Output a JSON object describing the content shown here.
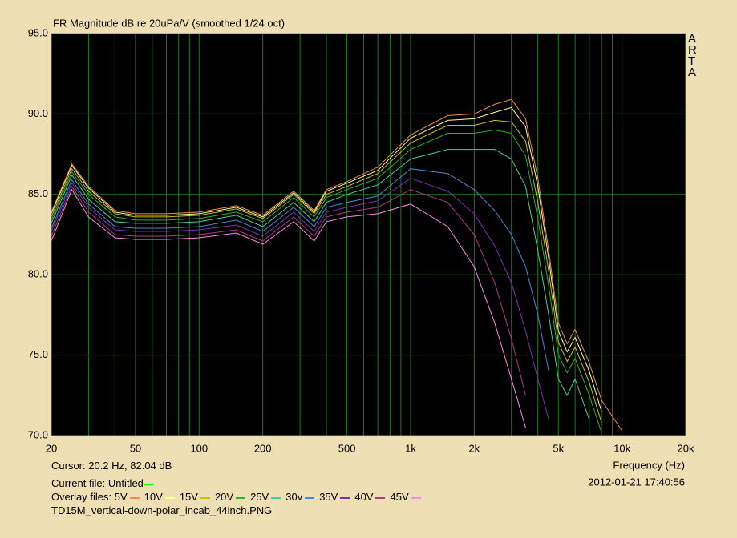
{
  "chart_data": {
    "type": "line",
    "title": "FR Magnitude dB re 20uPa/V (smoothed 1/24 oct)",
    "side_label": "ARTA",
    "x_label": "Frequency (Hz)",
    "x_log": true,
    "grid": true,
    "xlim": [
      20,
      20000
    ],
    "ylim": [
      70,
      95
    ],
    "yticks": [
      {
        "value": 70,
        "label": "70.0"
      },
      {
        "value": 75,
        "label": "75.0"
      },
      {
        "value": 80,
        "label": "80.0"
      },
      {
        "value": 85,
        "label": "85.0"
      },
      {
        "value": 90,
        "label": "90.0"
      },
      {
        "value": 95,
        "label": "95.0"
      }
    ],
    "xticks": [
      20,
      50,
      100,
      200,
      500,
      {
        "value": 1000,
        "label": "1k"
      },
      {
        "value": 2000,
        "label": "2k"
      },
      {
        "value": 5000,
        "label": "5k"
      },
      {
        "value": 10000,
        "label": "10k"
      },
      {
        "value": 20000,
        "label": "20k"
      }
    ],
    "x_minor_gridlines": [
      30,
      40,
      60,
      70,
      80,
      90,
      300,
      400,
      600,
      700,
      800,
      900,
      3000,
      4000,
      6000,
      7000,
      8000,
      9000
    ],
    "cursor_text": "Cursor: 20.2 Hz, 82.04 dB",
    "current_file_label": "Current file:",
    "current_file": "Untitled",
    "current_file_color": "#00ff00",
    "overlay_label": "Overlay files:",
    "file_name": "TD15M_vertical-down-polar_incab_44inch.PNG",
    "timestamp": "2012-01-21  17:40:56",
    "x": [
      20,
      25,
      30,
      40,
      50,
      70,
      100,
      150,
      200,
      280,
      350,
      400,
      500,
      700,
      1000,
      1500,
      2000,
      2500,
      3000,
      3500,
      4000,
      4500,
      5000,
      5500,
      6000,
      7000,
      8000,
      10000
    ],
    "series": [
      {
        "name": "5V",
        "color": "#f08a50",
        "values": [
          83.9,
          86.9,
          85.5,
          84.0,
          83.8,
          83.8,
          83.9,
          84.3,
          83.7,
          85.2,
          84.0,
          85.3,
          85.8,
          86.7,
          88.7,
          89.9,
          90.0,
          90.6,
          90.9,
          89.7,
          86.0,
          81.5,
          77.0,
          75.7,
          76.6,
          74.5,
          72.2,
          70.3
        ]
      },
      {
        "name": "10V",
        "color": "#ffff90",
        "values": [
          83.8,
          86.8,
          85.4,
          83.9,
          83.7,
          83.7,
          83.8,
          84.2,
          83.6,
          85.1,
          83.9,
          85.2,
          85.7,
          86.5,
          88.5,
          89.6,
          89.7,
          90.1,
          90.4,
          89.2,
          85.5,
          81.0,
          76.5,
          75.2,
          76.1,
          74.0,
          71.5,
          null
        ]
      },
      {
        "name": "15V",
        "color": "#c8c010",
        "values": [
          83.6,
          86.6,
          85.2,
          83.8,
          83.6,
          83.6,
          83.7,
          84.1,
          83.5,
          85.0,
          83.8,
          85.0,
          85.5,
          86.3,
          88.2,
          89.3,
          89.3,
          89.6,
          89.5,
          88.3,
          84.5,
          80.2,
          75.8,
          74.6,
          75.5,
          73.3,
          70.8,
          null
        ]
      },
      {
        "name": "20V",
        "color": "#30b030",
        "values": [
          83.4,
          86.4,
          85.0,
          83.6,
          83.4,
          83.4,
          83.5,
          83.9,
          83.3,
          84.8,
          83.6,
          84.8,
          85.3,
          86.0,
          87.8,
          88.8,
          88.8,
          89.0,
          88.8,
          87.4,
          83.5,
          79.3,
          75.0,
          73.9,
          74.8,
          72.5,
          70.2,
          null
        ]
      },
      {
        "name": "25V",
        "color": "#40d0a0",
        "values": [
          83.2,
          86.2,
          84.7,
          83.3,
          83.2,
          83.2,
          83.3,
          83.7,
          83.0,
          84.5,
          83.3,
          84.5,
          85.0,
          85.6,
          87.2,
          87.8,
          87.8,
          87.8,
          87.2,
          85.5,
          81.5,
          77.5,
          73.5,
          72.5,
          73.5,
          71.0,
          null,
          null
        ]
      },
      {
        "name": "30v",
        "color": "#4a88d0",
        "values": [
          82.9,
          85.9,
          84.4,
          83.0,
          82.9,
          82.9,
          83.0,
          83.4,
          82.7,
          84.2,
          83.0,
          84.2,
          84.5,
          84.9,
          86.6,
          86.3,
          85.3,
          84.0,
          82.5,
          80.5,
          77.5,
          74.0,
          null,
          null,
          null,
          null,
          null,
          null
        ]
      },
      {
        "name": "35V",
        "color": "#8030b0",
        "values": [
          82.7,
          85.7,
          84.2,
          82.8,
          82.7,
          82.7,
          82.8,
          83.1,
          82.4,
          83.9,
          82.7,
          83.9,
          84.2,
          84.6,
          86.0,
          85.2,
          83.8,
          81.8,
          79.5,
          76.5,
          73.5,
          71.0,
          null,
          null,
          null,
          null,
          null,
          null
        ]
      },
      {
        "name": "40V",
        "color": "#b03a88",
        "values": [
          82.4,
          85.5,
          83.9,
          82.5,
          82.4,
          82.4,
          82.5,
          82.8,
          82.1,
          83.6,
          82.4,
          83.6,
          83.9,
          84.2,
          85.3,
          84.5,
          82.5,
          79.5,
          76.0,
          72.5,
          null,
          null,
          null,
          null,
          null,
          null,
          null,
          null
        ]
      },
      {
        "name": "45V",
        "color": "#ff88e8",
        "values": [
          82.1,
          85.3,
          83.6,
          82.3,
          82.2,
          82.2,
          82.3,
          82.6,
          81.9,
          83.3,
          82.1,
          83.3,
          83.6,
          83.8,
          84.4,
          83.0,
          80.5,
          77.0,
          73.5,
          70.5,
          null,
          null,
          null,
          null,
          null,
          null,
          null,
          null
        ]
      }
    ]
  }
}
